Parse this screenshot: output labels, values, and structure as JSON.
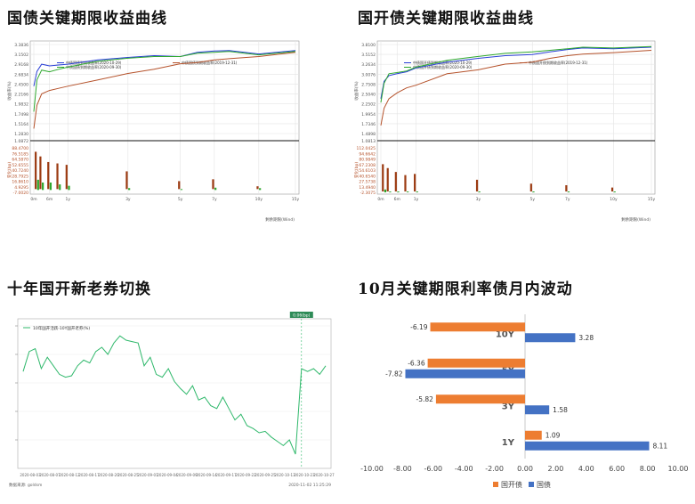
{
  "panels": {
    "p1": {
      "title": "国债关键期限收益曲线"
    },
    "p2": {
      "title": "国开债关键期限收益曲线"
    },
    "p3": {
      "title": "十年国开新老券切换"
    },
    "p4": {
      "title": "10月关键期限利率债月内波动"
    }
  },
  "chart_data": [
    {
      "type": "line",
      "title": "国债关键期限收益曲线",
      "ylabel": "收益率(%)",
      "ylabel2": "变化(bp)",
      "xlabel": "剩余期限(Wind)",
      "categories": [
        "0m",
        "6m",
        "1y",
        "3y",
        "5y",
        "7y",
        "10y",
        "15y"
      ],
      "y_ticks": [
        "3.3836",
        "3.1502",
        "2.9168",
        "2.6834",
        "2.4500",
        "2.2166",
        "1.9832",
        "1.7498",
        "1.5164",
        "1.2830"
      ],
      "bar_ticks": [
        "88.4700",
        "76.5185",
        "64.5870",
        "52.6555",
        "40.7240",
        "28.7925",
        "16.8610",
        "4.9295",
        "-7.0020"
      ],
      "floor_label": "1.0872",
      "legend": [
        "中债国债到期收益率(2020-10-29)",
        "中债国债到期收益率(2019-12-31)",
        "中债国债到期收益率(2020-09-30)"
      ],
      "series": [
        {
          "name": "中债国债到期收益率(2020-10-29)",
          "color": "#2a3fd6",
          "x": [
            0,
            0.1,
            0.25,
            0.5,
            0.75,
            1,
            2,
            3,
            4,
            5,
            6,
            7,
            8,
            10,
            15
          ],
          "values": [
            2.4,
            2.75,
            2.92,
            2.88,
            2.9,
            2.92,
            3.02,
            3.08,
            3.12,
            3.1,
            3.2,
            3.23,
            3.24,
            3.16,
            3.24
          ]
        },
        {
          "name": "中债国债到期收益率(2019-12-31)",
          "color": "#b5522b",
          "x": [
            0,
            0.1,
            0.25,
            0.5,
            0.75,
            1,
            2,
            3,
            4,
            5,
            6,
            7,
            8,
            10,
            15
          ],
          "values": [
            1.4,
            1.95,
            2.22,
            2.3,
            2.35,
            2.4,
            2.55,
            2.7,
            2.8,
            2.93,
            2.96,
            3.02,
            3.05,
            3.1,
            3.2
          ]
        },
        {
          "name": "中债国债到期收益率(2020-09-30)",
          "color": "#2ea82e",
          "x": [
            0,
            0.1,
            0.25,
            0.5,
            0.75,
            1,
            2,
            3,
            4,
            5,
            6,
            7,
            8,
            10,
            15
          ],
          "values": [
            1.8,
            2.55,
            2.78,
            2.74,
            2.8,
            2.85,
            2.99,
            3.06,
            3.1,
            3.1,
            3.18,
            3.2,
            3.22,
            3.14,
            3.22
          ]
        }
      ]
    },
    {
      "type": "line",
      "title": "国开债关键期限收益曲线",
      "ylabel": "收益率(%)",
      "ylabel2": "变化(bp)",
      "xlabel": "剩余期限(Wind)",
      "categories": [
        "0m",
        "6m",
        "1y",
        "3y",
        "5y",
        "7y",
        "10y",
        "15y"
      ],
      "y_ticks": [
        "3.8100",
        "3.5152",
        "3.2634",
        "3.0076",
        "2.7508",
        "2.5040",
        "2.2502",
        "1.9954",
        "1.7346",
        "1.4898"
      ],
      "bar_ticks": [
        "112.0425",
        "94.6642",
        "80.9849",
        "67.2308",
        "54.6103",
        "40.6540",
        "27.5738",
        "13.4940",
        "-2.3075"
      ],
      "floor_label": "1.0813",
      "legend": [
        "中债国开债到期收益率(2020-10-29)",
        "中债国开债到期收益率(2019-12-31)",
        "中债国开债到期收益率(2020-09-30)"
      ],
      "series": [
        {
          "name": "中债国开债到期收益率(2020-10-29)",
          "color": "#2a3fd6",
          "x": [
            0,
            0.1,
            0.25,
            0.5,
            0.75,
            1,
            2,
            3,
            4,
            5,
            6,
            7,
            8,
            10,
            15
          ],
          "values": [
            2.4,
            2.85,
            3.0,
            3.05,
            3.1,
            3.2,
            3.35,
            3.45,
            3.52,
            3.55,
            3.62,
            3.68,
            3.72,
            3.7,
            3.74
          ]
        },
        {
          "name": "中债国开债到期收益率(2019-12-31)",
          "color": "#b5522b",
          "x": [
            0,
            0.1,
            0.25,
            0.5,
            0.75,
            1,
            2,
            3,
            4,
            5,
            6,
            7,
            8,
            10,
            15
          ],
          "values": [
            1.7,
            2.15,
            2.4,
            2.55,
            2.68,
            2.75,
            3.05,
            3.15,
            3.3,
            3.35,
            3.45,
            3.52,
            3.56,
            3.6,
            3.66
          ]
        },
        {
          "name": "中债国开债到期收益率(2020-09-30)",
          "color": "#2ea82e",
          "x": [
            0,
            0.1,
            0.25,
            0.5,
            0.75,
            1,
            2,
            3,
            4,
            5,
            6,
            7,
            8,
            10,
            15
          ],
          "values": [
            2.3,
            2.8,
            3.05,
            3.08,
            3.12,
            3.22,
            3.4,
            3.5,
            3.58,
            3.62,
            3.66,
            3.7,
            3.74,
            3.72,
            3.76
          ]
        }
      ]
    },
    {
      "type": "line",
      "title": "十年国开新老券切换",
      "legend": [
        "10年国开活跃-10Y国开老券(%)"
      ],
      "badge": "0.06(bp)",
      "x_ticks": [
        "2020-08-03",
        "2020-08-07",
        "2020-08-12",
        "2020-08-17",
        "2020-08-20",
        "2020-08-25",
        "2020-09-01",
        "2020-09-04",
        "2020-09-09",
        "2020-09-14",
        "2020-09-17",
        "2020-09-22",
        "2020-09-25",
        "2020-10-13",
        "2020-10-23",
        "2020-10-27"
      ],
      "footer_left": "数据来源: goldsm",
      "footer_right": "2020-11-02 11:25:29",
      "series": [
        {
          "name": "10年国开活跃-10Y国开老券(%)",
          "color": "#2fb86b",
          "values": [
            0.08,
            0.22,
            0.24,
            0.1,
            0.18,
            0.12,
            0.06,
            0.04,
            0.05,
            0.12,
            0.16,
            0.14,
            0.22,
            0.25,
            0.2,
            0.28,
            0.33,
            0.3,
            0.29,
            0.28,
            0.12,
            0.18,
            0.06,
            0.04,
            0.1,
            0.01,
            -0.04,
            -0.08,
            -0.02,
            -0.12,
            -0.1,
            -0.16,
            -0.18,
            -0.1,
            -0.18,
            -0.26,
            -0.22,
            -0.3,
            -0.32,
            -0.35,
            -0.34,
            -0.38,
            -0.41,
            -0.44,
            -0.4,
            -0.5,
            0.1,
            0.08,
            0.1,
            0.06,
            0.12
          ]
        }
      ]
    },
    {
      "type": "bar",
      "title": "10月关键期限利率债月内波动",
      "orientation": "horizontal",
      "categories": [
        "10Y",
        "5Y",
        "3Y",
        "1Y"
      ],
      "xlim": [
        -10,
        10
      ],
      "x_ticks": [
        "-10.00",
        "-8.00",
        "-6.00",
        "-4.00",
        "-2.00",
        "0.00",
        "2.00",
        "4.00",
        "6.00",
        "8.00",
        "10.00"
      ],
      "series": [
        {
          "name": "国开债",
          "color": "#ed7d31",
          "values": [
            -6.19,
            -6.36,
            -5.82,
            1.09
          ]
        },
        {
          "name": "国债",
          "color": "#4472c4",
          "values": [
            3.28,
            -7.82,
            1.58,
            8.11
          ]
        }
      ],
      "value_labels": [
        [
          "-6.19",
          "-6.36",
          "-5.82",
          "1.09"
        ],
        [
          "3.28",
          "-7.82",
          "1.58",
          "8.11"
        ]
      ]
    }
  ]
}
